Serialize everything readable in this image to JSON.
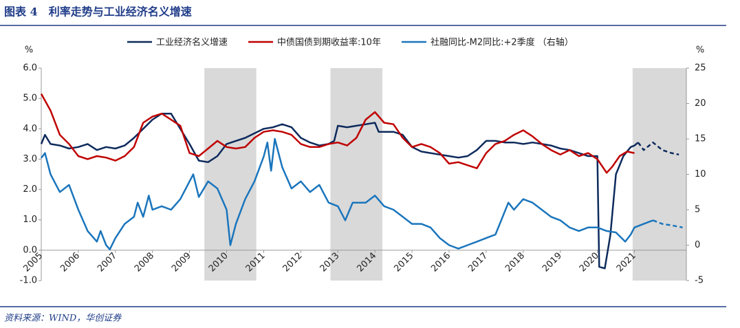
{
  "header": {
    "title": "图表 4　利率走势与工业经济名义增速"
  },
  "footer": {
    "source": "资料来源：WIND，华创证券"
  },
  "chart_data": {
    "type": "line",
    "y_unit": "%",
    "y2_unit": "%",
    "xlim": [
      2005,
      2022.4
    ],
    "xticks": [
      2005,
      2006,
      2007,
      2008,
      2009,
      2010,
      2011,
      2012,
      2013,
      2014,
      2015,
      2016,
      2017,
      2018,
      2019,
      2020,
      2021
    ],
    "ylim": [
      -1,
      6
    ],
    "yticks": [
      {
        "value": -1,
        "label": "-1.0"
      },
      {
        "value": 0,
        "label": "0.0"
      },
      {
        "value": 1,
        "label": "1.0"
      },
      {
        "value": 2,
        "label": "2.0"
      },
      {
        "value": 3,
        "label": "3.0"
      },
      {
        "value": 4,
        "label": "4.0"
      },
      {
        "value": 5,
        "label": "5.0"
      },
      {
        "value": 6,
        "label": "6.0"
      }
    ],
    "y2lim": [
      -5,
      25
    ],
    "y2ticks": [
      -5,
      0,
      5,
      10,
      15,
      20,
      25
    ],
    "legend": "top",
    "shaded_ranges": [
      [
        2009.4,
        2010.8
      ],
      [
        2012.8,
        2014.2
      ],
      [
        2020.95,
        2022.4
      ]
    ],
    "series": [
      {
        "name": "工业经济名义增速",
        "color": "#0d2a5c",
        "axis": "y",
        "dashed_from": 2021.1,
        "x": [
          2005.0,
          2005.1,
          2005.25,
          2005.5,
          2005.75,
          2006.0,
          2006.25,
          2006.5,
          2006.75,
          2007.0,
          2007.25,
          2007.5,
          2007.75,
          2008.0,
          2008.25,
          2008.5,
          2008.75,
          2009.0,
          2009.25,
          2009.5,
          2009.75,
          2010.0,
          2010.25,
          2010.5,
          2010.75,
          2011.0,
          2011.25,
          2011.5,
          2011.75,
          2012.0,
          2012.25,
          2012.5,
          2012.75,
          2012.9,
          2013.0,
          2013.25,
          2013.5,
          2013.75,
          2014.0,
          2014.1,
          2014.5,
          2014.75,
          2015.0,
          2015.25,
          2015.5,
          2015.75,
          2016.0,
          2016.25,
          2016.5,
          2016.75,
          2017.0,
          2017.25,
          2017.5,
          2017.75,
          2018.0,
          2018.25,
          2018.5,
          2018.75,
          2019.0,
          2019.25,
          2019.5,
          2019.75,
          2020.0,
          2020.05,
          2020.2,
          2020.35,
          2020.5,
          2020.7,
          2020.9,
          2021.0,
          2021.1,
          2021.25,
          2021.5,
          2021.75,
          2022.0,
          2022.2
        ],
        "values": [
          3.5,
          3.8,
          3.5,
          3.45,
          3.35,
          3.4,
          3.5,
          3.3,
          3.4,
          3.35,
          3.45,
          3.7,
          4.0,
          4.3,
          4.5,
          4.5,
          4.0,
          3.5,
          2.95,
          2.9,
          3.1,
          3.5,
          3.6,
          3.7,
          3.85,
          4.0,
          4.05,
          4.15,
          4.05,
          3.7,
          3.55,
          3.45,
          3.5,
          3.6,
          4.1,
          4.05,
          4.1,
          4.15,
          4.2,
          3.9,
          3.9,
          3.8,
          3.4,
          3.25,
          3.2,
          3.15,
          3.1,
          3.05,
          3.1,
          3.3,
          3.6,
          3.6,
          3.55,
          3.55,
          3.5,
          3.55,
          3.5,
          3.45,
          3.35,
          3.3,
          3.2,
          3.1,
          3.1,
          -0.55,
          -0.6,
          0.5,
          2.5,
          3.1,
          3.4,
          3.45,
          3.55,
          3.3,
          3.55,
          3.3,
          3.2,
          3.15
        ]
      },
      {
        "name": "中债国债到期收益率:10年",
        "color": "#c00000",
        "axis": "y",
        "x": [
          2005.0,
          2005.25,
          2005.5,
          2005.75,
          2006.0,
          2006.25,
          2006.5,
          2006.75,
          2007.0,
          2007.25,
          2007.5,
          2007.75,
          2008.0,
          2008.25,
          2008.5,
          2008.75,
          2009.0,
          2009.25,
          2009.5,
          2009.75,
          2010.0,
          2010.25,
          2010.5,
          2010.75,
          2011.0,
          2011.25,
          2011.5,
          2011.75,
          2012.0,
          2012.25,
          2012.5,
          2012.75,
          2013.0,
          2013.25,
          2013.5,
          2013.75,
          2014.0,
          2014.25,
          2014.5,
          2014.75,
          2015.0,
          2015.25,
          2015.5,
          2015.75,
          2016.0,
          2016.25,
          2016.5,
          2016.75,
          2017.0,
          2017.25,
          2017.5,
          2017.75,
          2018.0,
          2018.25,
          2018.5,
          2018.75,
          2019.0,
          2019.25,
          2019.5,
          2019.75,
          2020.0,
          2020.25,
          2020.4,
          2020.6,
          2020.8,
          2021.0
        ],
        "values": [
          5.15,
          4.6,
          3.8,
          3.5,
          3.1,
          3.0,
          3.1,
          3.05,
          2.95,
          3.1,
          3.4,
          4.2,
          4.4,
          4.5,
          4.3,
          4.1,
          3.2,
          3.1,
          3.35,
          3.6,
          3.4,
          3.35,
          3.4,
          3.7,
          3.9,
          3.95,
          3.9,
          3.8,
          3.5,
          3.4,
          3.4,
          3.5,
          3.55,
          3.45,
          3.7,
          4.3,
          4.55,
          4.2,
          4.15,
          3.7,
          3.4,
          3.5,
          3.4,
          3.2,
          2.85,
          2.9,
          2.8,
          2.7,
          3.2,
          3.5,
          3.6,
          3.8,
          3.95,
          3.75,
          3.5,
          3.3,
          3.15,
          3.3,
          3.1,
          3.2,
          3.0,
          2.55,
          2.75,
          3.1,
          3.25,
          3.2
        ]
      },
      {
        "name": "社融同比-M2同比:+2季度 （右轴）",
        "color": "#1a75bc",
        "axis": "y2",
        "dashed_from": 2021.5,
        "x": [
          2005.0,
          2005.1,
          2005.25,
          2005.5,
          2005.75,
          2006.0,
          2006.25,
          2006.5,
          2006.6,
          2006.75,
          2006.85,
          2007.0,
          2007.25,
          2007.5,
          2007.6,
          2007.75,
          2007.9,
          2008.0,
          2008.25,
          2008.5,
          2008.75,
          2009.0,
          2009.1,
          2009.25,
          2009.5,
          2009.75,
          2010.0,
          2010.1,
          2010.25,
          2010.5,
          2010.75,
          2011.0,
          2011.1,
          2011.2,
          2011.3,
          2011.5,
          2011.75,
          2012.0,
          2012.25,
          2012.5,
          2012.75,
          2013.0,
          2013.2,
          2013.4,
          2013.75,
          2014.0,
          2014.25,
          2014.5,
          2014.75,
          2015.0,
          2015.25,
          2015.5,
          2015.75,
          2016.0,
          2016.25,
          2016.5,
          2016.75,
          2017.0,
          2017.25,
          2017.6,
          2017.75,
          2018.0,
          2018.25,
          2018.5,
          2018.75,
          2019.0,
          2019.25,
          2019.5,
          2019.75,
          2020.0,
          2020.25,
          2020.5,
          2020.75,
          2020.9,
          2021.0,
          2021.25,
          2021.5,
          2021.75,
          2022.0,
          2022.3
        ],
        "values": [
          12.3,
          13,
          10,
          7.5,
          8.5,
          5,
          2,
          0.5,
          2,
          0,
          -0.6,
          1,
          3,
          4,
          6,
          4,
          7,
          5,
          5.5,
          5,
          6.5,
          9,
          10,
          6.8,
          9,
          8,
          5,
          0,
          3,
          6.5,
          9,
          12.5,
          14.5,
          10.5,
          15,
          11,
          8,
          9,
          7.5,
          8.5,
          6,
          5.5,
          3.5,
          6,
          6,
          7,
          5.5,
          5,
          4,
          3,
          3,
          2.5,
          1,
          0,
          -0.5,
          0,
          0.5,
          1,
          1.5,
          6,
          5,
          6.5,
          6,
          5,
          4,
          3.5,
          2.5,
          2,
          2.5,
          2.5,
          2,
          1.8,
          0.5,
          1.5,
          2.5,
          3,
          3.5,
          3,
          2.8,
          2.5
        ]
      }
    ]
  }
}
